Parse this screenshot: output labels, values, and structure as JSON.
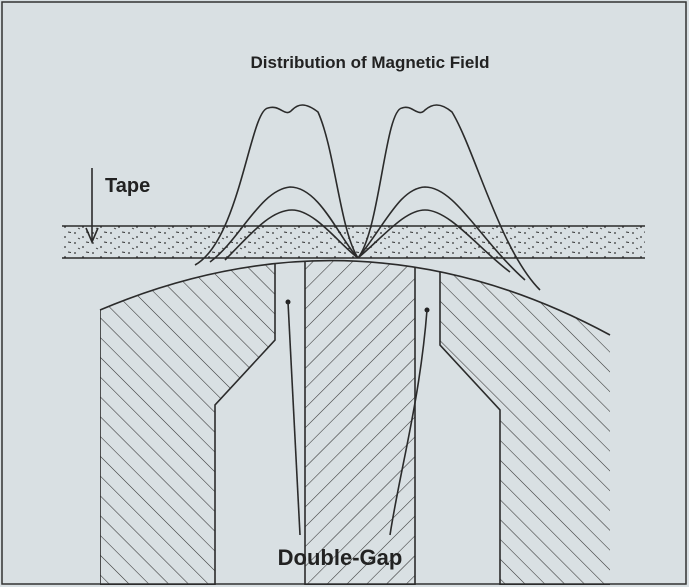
{
  "title": "Distribution of Magnetic Field",
  "labels": {
    "tape": "Tape",
    "gap": "Double-Gap"
  }
}
